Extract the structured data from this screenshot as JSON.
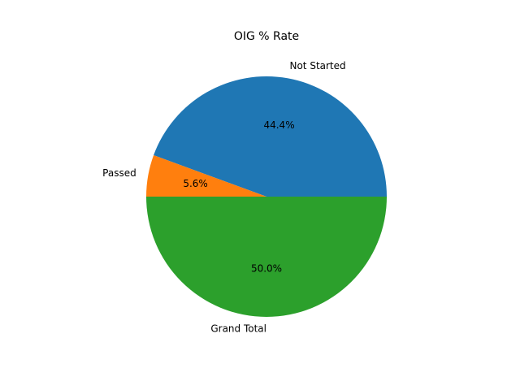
{
  "chart_data": {
    "type": "pie",
    "title": "OIG % Rate",
    "categories": [
      "Not Started",
      "Passed",
      "Grand Total"
    ],
    "values": [
      44.4,
      5.6,
      50.0
    ],
    "percent_labels": [
      "44.4%",
      "5.6%",
      "50.0%"
    ],
    "colors": [
      "#1f77b4",
      "#ff7f0e",
      "#2ca02c"
    ],
    "start_angle_deg": 0,
    "direction": "counterclockwise",
    "legend": "none"
  }
}
